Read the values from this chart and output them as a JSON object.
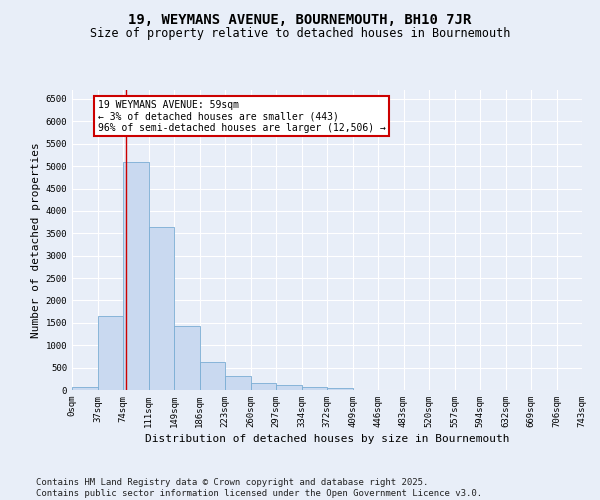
{
  "title": "19, WEYMANS AVENUE, BOURNEMOUTH, BH10 7JR",
  "subtitle": "Size of property relative to detached houses in Bournemouth",
  "xlabel": "Distribution of detached houses by size in Bournemouth",
  "ylabel": "Number of detached properties",
  "bar_values": [
    70,
    1650,
    5100,
    3630,
    1420,
    620,
    310,
    155,
    110,
    70,
    45,
    0,
    0,
    0,
    0,
    0,
    0,
    0,
    0,
    0
  ],
  "bar_labels": [
    "0sqm",
    "37sqm",
    "74sqm",
    "111sqm",
    "149sqm",
    "186sqm",
    "223sqm",
    "260sqm",
    "297sqm",
    "334sqm",
    "372sqm",
    "409sqm",
    "446sqm",
    "483sqm",
    "520sqm",
    "557sqm",
    "594sqm",
    "632sqm",
    "669sqm",
    "706sqm",
    "743sqm"
  ],
  "bar_color": "#c9d9f0",
  "bar_edgecolor": "#7aadd4",
  "vline_x": 1.62,
  "vline_color": "#cc0000",
  "annotation_text": "19 WEYMANS AVENUE: 59sqm\n← 3% of detached houses are smaller (443)\n96% of semi-detached houses are larger (12,506) →",
  "annotation_box_color": "#ffffff",
  "annotation_box_edgecolor": "#cc0000",
  "ylim": [
    0,
    6700
  ],
  "yticks": [
    0,
    500,
    1000,
    1500,
    2000,
    2500,
    3000,
    3500,
    4000,
    4500,
    5000,
    5500,
    6000,
    6500
  ],
  "background_color": "#e8eef8",
  "footer_line1": "Contains HM Land Registry data © Crown copyright and database right 2025.",
  "footer_line2": "Contains public sector information licensed under the Open Government Licence v3.0.",
  "title_fontsize": 10,
  "subtitle_fontsize": 8.5,
  "footer_fontsize": 6.5,
  "tick_fontsize": 6.5,
  "ylabel_fontsize": 8,
  "xlabel_fontsize": 8
}
